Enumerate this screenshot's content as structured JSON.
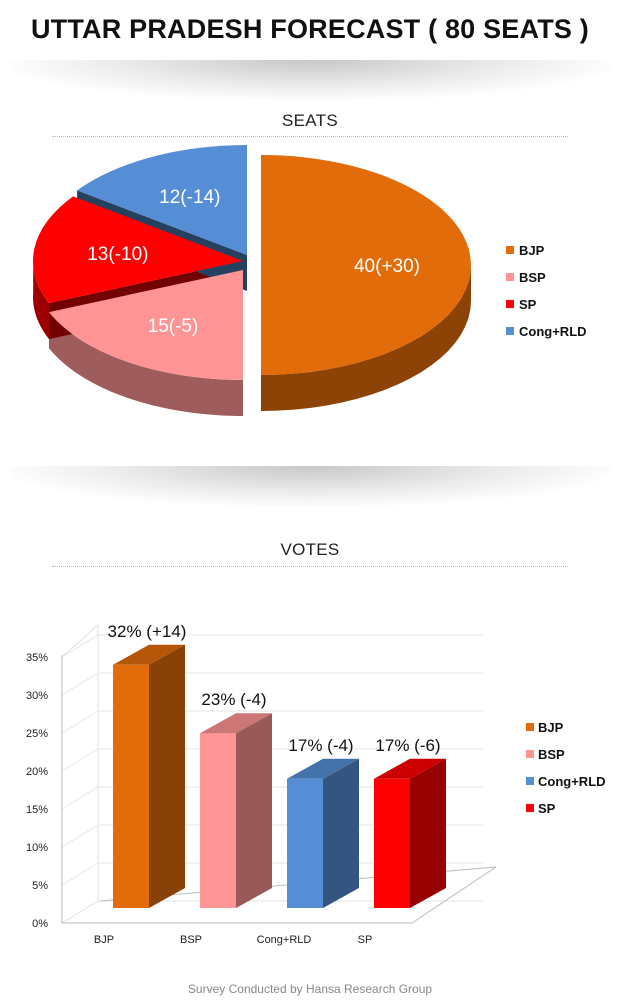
{
  "header": {
    "title": "UTTAR PRADESH FORECAST ( 80 SEATS )"
  },
  "seats_section": {
    "label": "SEATS"
  },
  "votes_section": {
    "label": "VOTES"
  },
  "footer": {
    "text": "Survey Conducted by Hansa Research Group"
  },
  "chart_data": [
    {
      "type": "pie",
      "title": "SEATS",
      "categories": [
        "BJP",
        "BSP",
        "SP",
        "Cong+RLD"
      ],
      "values": [
        40,
        15,
        13,
        12
      ],
      "changes": [
        "+30",
        "-5",
        "-10",
        "-14"
      ],
      "labels": [
        "40(+30)",
        "15(-5)",
        "13(-10)",
        "12(-14)"
      ],
      "colors": [
        "#E36C0A",
        "#FF9494",
        "#FF0000",
        "#558ED5"
      ],
      "legend": [
        "BJP",
        "BSP",
        "SP",
        "Cong+RLD"
      ],
      "legend_position": "right"
    },
    {
      "type": "bar",
      "title": "VOTES",
      "categories": [
        "BJP",
        "BSP",
        "Cong+RLD",
        "SP"
      ],
      "values": [
        32,
        23,
        17,
        17
      ],
      "changes": [
        "+14",
        "-4",
        "-4",
        "-6"
      ],
      "labels": [
        "32% (+14)",
        "23% (-4)",
        "17% (-4)",
        "17% (-6)"
      ],
      "colors": [
        "#E36C0A",
        "#FF9494",
        "#558ED5",
        "#FF0000"
      ],
      "ylim": [
        0,
        35
      ],
      "yticks": [
        "0%",
        "5%",
        "10%",
        "15%",
        "20%",
        "25%",
        "30%",
        "35%"
      ],
      "legend": [
        "BJP",
        "BSP",
        "Cong+RLD",
        "SP"
      ],
      "legend_position": "right",
      "grid": true
    }
  ]
}
